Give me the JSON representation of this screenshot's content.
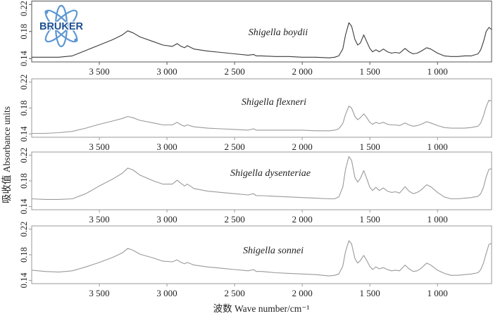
{
  "axes": {
    "ylabel": "吸收值 Absorbance units",
    "xlabel": "波数 Wave number/cm⁻¹"
  },
  "logo": {
    "text": "BRUKER",
    "ring_color": "#5d97d3",
    "text_color": "#1d4f91"
  },
  "chart_data": [
    {
      "type": "line",
      "title": "Shigella boydii",
      "color": "#3a3a3a",
      "axis_color": "#555555",
      "xlim": [
        4000,
        600
      ],
      "ylim": [
        0.135,
        0.225
      ],
      "xticks": [
        3500,
        3000,
        2500,
        2000,
        1500,
        1000
      ],
      "xtick_labels": [
        "3 500",
        "3 000",
        "2 500",
        "2 000",
        "1 500",
        "1 000"
      ],
      "yticks": [
        0.22,
        0.18,
        0.14
      ],
      "ytick_labels": [
        "0.22",
        "0.18",
        "0.14"
      ],
      "x": [
        4000,
        3900,
        3800,
        3700,
        3600,
        3500,
        3400,
        3330,
        3290,
        3250,
        3200,
        3100,
        3030,
        2960,
        2925,
        2895,
        2870,
        2850,
        2800,
        2700,
        2600,
        2500,
        2400,
        2360,
        2340,
        2300,
        2200,
        2100,
        2000,
        1900,
        1800,
        1760,
        1730,
        1700,
        1680,
        1655,
        1635,
        1610,
        1590,
        1570,
        1545,
        1525,
        1500,
        1480,
        1455,
        1430,
        1400,
        1370,
        1340,
        1310,
        1280,
        1240,
        1210,
        1180,
        1150,
        1120,
        1080,
        1050,
        1000,
        950,
        900,
        850,
        800,
        750,
        700,
        680,
        660,
        640,
        620,
        600
      ],
      "y": [
        0.142,
        0.142,
        0.142,
        0.144,
        0.152,
        0.16,
        0.168,
        0.175,
        0.181,
        0.178,
        0.172,
        0.165,
        0.16,
        0.158,
        0.162,
        0.158,
        0.156,
        0.159,
        0.154,
        0.151,
        0.149,
        0.147,
        0.145,
        0.146,
        0.144,
        0.144,
        0.143,
        0.143,
        0.142,
        0.142,
        0.141,
        0.142,
        0.144,
        0.154,
        0.175,
        0.193,
        0.188,
        0.168,
        0.16,
        0.163,
        0.175,
        0.166,
        0.155,
        0.15,
        0.153,
        0.15,
        0.154,
        0.15,
        0.148,
        0.149,
        0.148,
        0.155,
        0.15,
        0.147,
        0.148,
        0.151,
        0.156,
        0.154,
        0.148,
        0.144,
        0.143,
        0.143,
        0.144,
        0.144,
        0.147,
        0.153,
        0.165,
        0.18,
        0.186,
        0.183
      ]
    },
    {
      "type": "line",
      "title": "Shigella flexneri",
      "color": "#9a9a9a",
      "axis_color": "#9a9a9a",
      "xlim": [
        4000,
        600
      ],
      "ylim": [
        0.135,
        0.225
      ],
      "xticks": [
        3500,
        3000,
        2500,
        2000,
        1500,
        1000
      ],
      "xtick_labels": [
        "3 500",
        "3 000",
        "2 500",
        "2 000",
        "1 500",
        "1 000"
      ],
      "yticks": [
        0.22,
        0.18,
        0.14
      ],
      "ytick_labels": [
        "0.22",
        "0.18",
        "0.14"
      ],
      "x": [
        4000,
        3900,
        3800,
        3700,
        3600,
        3500,
        3400,
        3330,
        3290,
        3250,
        3200,
        3100,
        3030,
        2960,
        2925,
        2895,
        2870,
        2850,
        2800,
        2700,
        2600,
        2500,
        2400,
        2360,
        2340,
        2300,
        2200,
        2100,
        2000,
        1900,
        1800,
        1760,
        1730,
        1700,
        1680,
        1655,
        1635,
        1610,
        1590,
        1570,
        1545,
        1525,
        1500,
        1480,
        1455,
        1430,
        1400,
        1370,
        1340,
        1310,
        1280,
        1240,
        1210,
        1180,
        1150,
        1120,
        1080,
        1050,
        1000,
        950,
        900,
        850,
        800,
        750,
        700,
        680,
        660,
        640,
        620,
        600
      ],
      "y": [
        0.141,
        0.141,
        0.142,
        0.144,
        0.149,
        0.155,
        0.16,
        0.164,
        0.167,
        0.165,
        0.161,
        0.157,
        0.154,
        0.154,
        0.158,
        0.154,
        0.152,
        0.154,
        0.151,
        0.149,
        0.148,
        0.147,
        0.146,
        0.148,
        0.146,
        0.146,
        0.146,
        0.146,
        0.146,
        0.145,
        0.145,
        0.146,
        0.148,
        0.156,
        0.17,
        0.183,
        0.18,
        0.167,
        0.162,
        0.165,
        0.171,
        0.166,
        0.158,
        0.155,
        0.158,
        0.156,
        0.158,
        0.155,
        0.154,
        0.154,
        0.153,
        0.157,
        0.154,
        0.152,
        0.153,
        0.155,
        0.159,
        0.157,
        0.153,
        0.15,
        0.149,
        0.149,
        0.149,
        0.15,
        0.152,
        0.157,
        0.168,
        0.182,
        0.192,
        0.191
      ]
    },
    {
      "type": "line",
      "title": "Shigella dysenteriae",
      "color": "#9a9a9a",
      "axis_color": "#9a9a9a",
      "xlim": [
        4000,
        600
      ],
      "ylim": [
        0.135,
        0.225
      ],
      "xticks": [
        3500,
        3000,
        2500,
        2000,
        1500,
        1000
      ],
      "xtick_labels": [
        "3 500",
        "3 000",
        "2 500",
        "2 000",
        "1 500",
        "1 000"
      ],
      "yticks": [
        0.22,
        0.18,
        0.14
      ],
      "ytick_labels": [
        "0.22",
        "0.18",
        "0.14"
      ],
      "x": [
        4000,
        3900,
        3800,
        3700,
        3600,
        3500,
        3400,
        3330,
        3290,
        3250,
        3200,
        3100,
        3030,
        2960,
        2925,
        2895,
        2870,
        2850,
        2800,
        2700,
        2600,
        2500,
        2400,
        2360,
        2340,
        2300,
        2200,
        2100,
        2000,
        1900,
        1800,
        1760,
        1730,
        1700,
        1680,
        1655,
        1635,
        1610,
        1590,
        1570,
        1545,
        1525,
        1500,
        1480,
        1455,
        1430,
        1400,
        1370,
        1340,
        1310,
        1280,
        1240,
        1210,
        1180,
        1150,
        1120,
        1080,
        1050,
        1000,
        950,
        900,
        850,
        800,
        750,
        700,
        680,
        660,
        640,
        620,
        600
      ],
      "y": [
        0.152,
        0.151,
        0.151,
        0.152,
        0.16,
        0.172,
        0.183,
        0.192,
        0.2,
        0.197,
        0.189,
        0.18,
        0.175,
        0.175,
        0.181,
        0.176,
        0.172,
        0.175,
        0.168,
        0.164,
        0.162,
        0.16,
        0.158,
        0.16,
        0.157,
        0.157,
        0.156,
        0.155,
        0.154,
        0.153,
        0.152,
        0.152,
        0.155,
        0.17,
        0.198,
        0.218,
        0.212,
        0.185,
        0.178,
        0.184,
        0.196,
        0.185,
        0.17,
        0.165,
        0.17,
        0.165,
        0.169,
        0.164,
        0.162,
        0.163,
        0.161,
        0.171,
        0.164,
        0.16,
        0.162,
        0.166,
        0.174,
        0.171,
        0.162,
        0.155,
        0.152,
        0.152,
        0.153,
        0.154,
        0.156,
        0.16,
        0.17,
        0.186,
        0.198,
        0.199
      ]
    },
    {
      "type": "line",
      "title": "Shigella sonnei",
      "color": "#9a9a9a",
      "axis_color": "#9a9a9a",
      "xlim": [
        4000,
        600
      ],
      "ylim": [
        0.135,
        0.225
      ],
      "xticks": [
        3500,
        3000,
        2500,
        2000,
        1500,
        1000
      ],
      "xtick_labels": [
        "3 500",
        "3 000",
        "2 500",
        "2 000",
        "1 500",
        "1 000"
      ],
      "yticks": [
        0.22,
        0.18,
        0.14
      ],
      "ytick_labels": [
        "0.22",
        "0.18",
        "0.14"
      ],
      "x": [
        4000,
        3900,
        3800,
        3700,
        3600,
        3500,
        3400,
        3330,
        3290,
        3250,
        3200,
        3100,
        3030,
        2960,
        2925,
        2895,
        2870,
        2850,
        2800,
        2700,
        2600,
        2500,
        2400,
        2360,
        2340,
        2300,
        2200,
        2100,
        2000,
        1900,
        1800,
        1760,
        1730,
        1700,
        1680,
        1655,
        1635,
        1610,
        1590,
        1570,
        1545,
        1525,
        1500,
        1480,
        1455,
        1430,
        1400,
        1370,
        1340,
        1310,
        1280,
        1240,
        1210,
        1180,
        1150,
        1120,
        1080,
        1050,
        1000,
        950,
        900,
        850,
        800,
        750,
        700,
        680,
        660,
        640,
        620,
        600
      ],
      "y": [
        0.156,
        0.154,
        0.153,
        0.155,
        0.161,
        0.168,
        0.176,
        0.183,
        0.19,
        0.187,
        0.181,
        0.175,
        0.17,
        0.169,
        0.172,
        0.168,
        0.166,
        0.168,
        0.164,
        0.161,
        0.159,
        0.157,
        0.155,
        0.157,
        0.154,
        0.154,
        0.152,
        0.151,
        0.15,
        0.149,
        0.147,
        0.148,
        0.15,
        0.162,
        0.185,
        0.202,
        0.197,
        0.174,
        0.167,
        0.171,
        0.179,
        0.172,
        0.162,
        0.157,
        0.161,
        0.158,
        0.16,
        0.157,
        0.155,
        0.156,
        0.155,
        0.164,
        0.158,
        0.154,
        0.155,
        0.159,
        0.167,
        0.164,
        0.156,
        0.151,
        0.148,
        0.148,
        0.149,
        0.15,
        0.152,
        0.157,
        0.167,
        0.182,
        0.196,
        0.198
      ]
    }
  ]
}
